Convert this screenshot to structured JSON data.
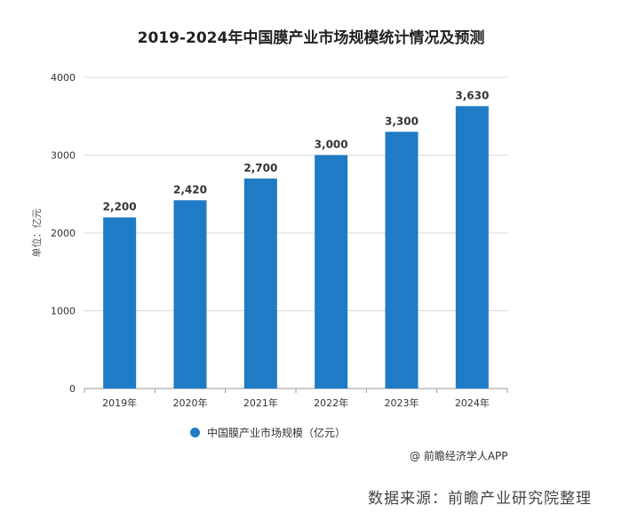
{
  "chart_data": {
    "type": "bar",
    "title": "2019-2024年中国膜产业市场规模统计情况及预测",
    "ylabel": "单位：亿元",
    "xlabel": "",
    "categories": [
      "2019年",
      "2020年",
      "2021年",
      "2022年",
      "2023年",
      "2024年"
    ],
    "series": [
      {
        "name": "中国膜产业市场规模（亿元）",
        "values": [
          2200,
          2420,
          2700,
          3000,
          3300,
          3630
        ]
      }
    ],
    "data_labels": [
      "2,200",
      "2,420",
      "2,700",
      "3,000",
      "3,300",
      "3,630"
    ],
    "yticks": [
      0,
      1000,
      2000,
      3000,
      4000
    ],
    "ylim": [
      0,
      4000
    ],
    "grid": true,
    "legend_position": "bottom",
    "bar_color": "#1f7bc5"
  },
  "credit": "@ 前瞻经济学人APP",
  "source": "数据来源：前瞻产业研究院整理"
}
